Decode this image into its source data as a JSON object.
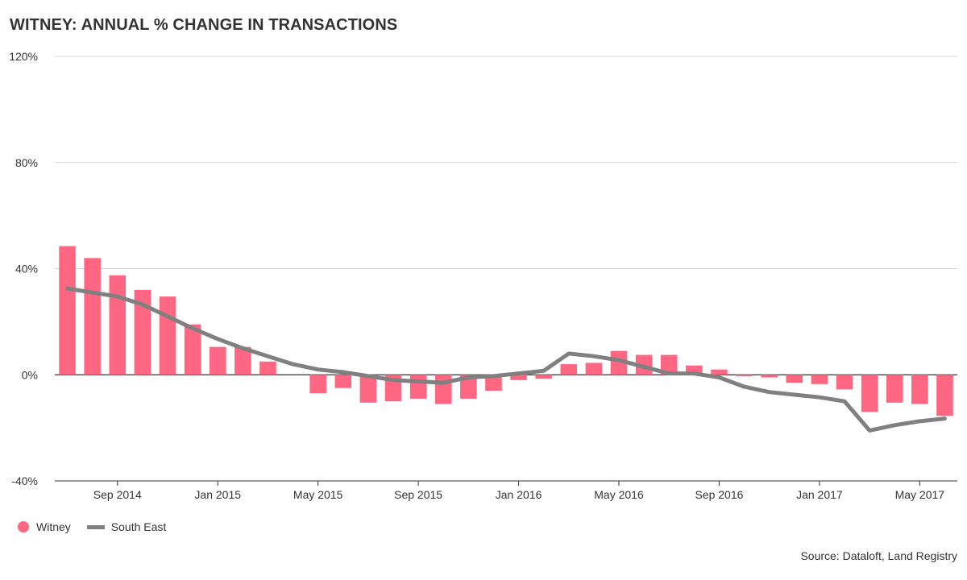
{
  "chart_data": {
    "type": "bar",
    "title": "WITNEY: ANNUAL % CHANGE IN TRANSACTIONS",
    "ylim": [
      -40,
      120
    ],
    "yticks": [
      -40,
      0,
      40,
      80,
      120
    ],
    "ytick_labels": [
      "-40%",
      "0%",
      "40%",
      "80%",
      "120%"
    ],
    "categories": [
      "Jul 2014",
      "Aug 2014",
      "Sep 2014",
      "Oct 2014",
      "Nov 2014",
      "Dec 2014",
      "Jan 2015",
      "Feb 2015",
      "Mar 2015",
      "Apr 2015",
      "May 2015",
      "Jun 2015",
      "Jul 2015",
      "Aug 2015",
      "Sep 2015",
      "Oct 2015",
      "Nov 2015",
      "Dec 2015",
      "Jan 2016",
      "Feb 2016",
      "Mar 2016",
      "Apr 2016",
      "May 2016",
      "Jun 2016",
      "Jul 2016",
      "Aug 2016",
      "Sep 2016",
      "Oct 2016",
      "Nov 2016",
      "Dec 2016",
      "Jan 2017",
      "Feb 2017",
      "Mar 2017",
      "Apr 2017",
      "May 2017",
      "Jun 2017"
    ],
    "xtick_labels": [
      {
        "index": 2,
        "label": "Sep 2014"
      },
      {
        "index": 6,
        "label": "Jan 2015"
      },
      {
        "index": 10,
        "label": "May 2015"
      },
      {
        "index": 14,
        "label": "Sep 2015"
      },
      {
        "index": 18,
        "label": "Jan 2016"
      },
      {
        "index": 22,
        "label": "May 2016"
      },
      {
        "index": 26,
        "label": "Sep 2016"
      },
      {
        "index": 30,
        "label": "Jan 2017"
      },
      {
        "index": 34,
        "label": "May 2017"
      }
    ],
    "series": [
      {
        "name": "Witney",
        "kind": "bar",
        "color": "#ff6681",
        "values": [
          48.5,
          44,
          37.5,
          32,
          29.5,
          19,
          10.5,
          10.5,
          5,
          0,
          -7,
          -5,
          -10.5,
          -10,
          -9,
          -11,
          -9,
          -6,
          -2,
          -1.5,
          4,
          4.5,
          9,
          7.5,
          7.5,
          3.5,
          2,
          -0.5,
          -1,
          -3,
          -3.5,
          -5.5,
          -14,
          -10.5,
          -11,
          -15.5
        ]
      },
      {
        "name": "South East",
        "kind": "line",
        "color": "#808080",
        "values": [
          32.5,
          31,
          29.5,
          26.5,
          22,
          17.5,
          13.5,
          10,
          7,
          4,
          2,
          1,
          -0.5,
          -2,
          -2.5,
          -3,
          -1,
          -0.5,
          0.5,
          1.5,
          8,
          7,
          5.5,
          3,
          0.5,
          0.5,
          -1,
          -4.5,
          -6.5,
          -7.5,
          -8.5,
          -10,
          -21,
          -19,
          -17.5,
          -16.5
        ]
      }
    ]
  },
  "legend": {
    "witney_label": "Witney",
    "southeast_label": "South East",
    "witney_color": "#ff6681",
    "southeast_color": "#808080"
  },
  "footer": {
    "source": "Source: Dataloft, Land Registry"
  }
}
